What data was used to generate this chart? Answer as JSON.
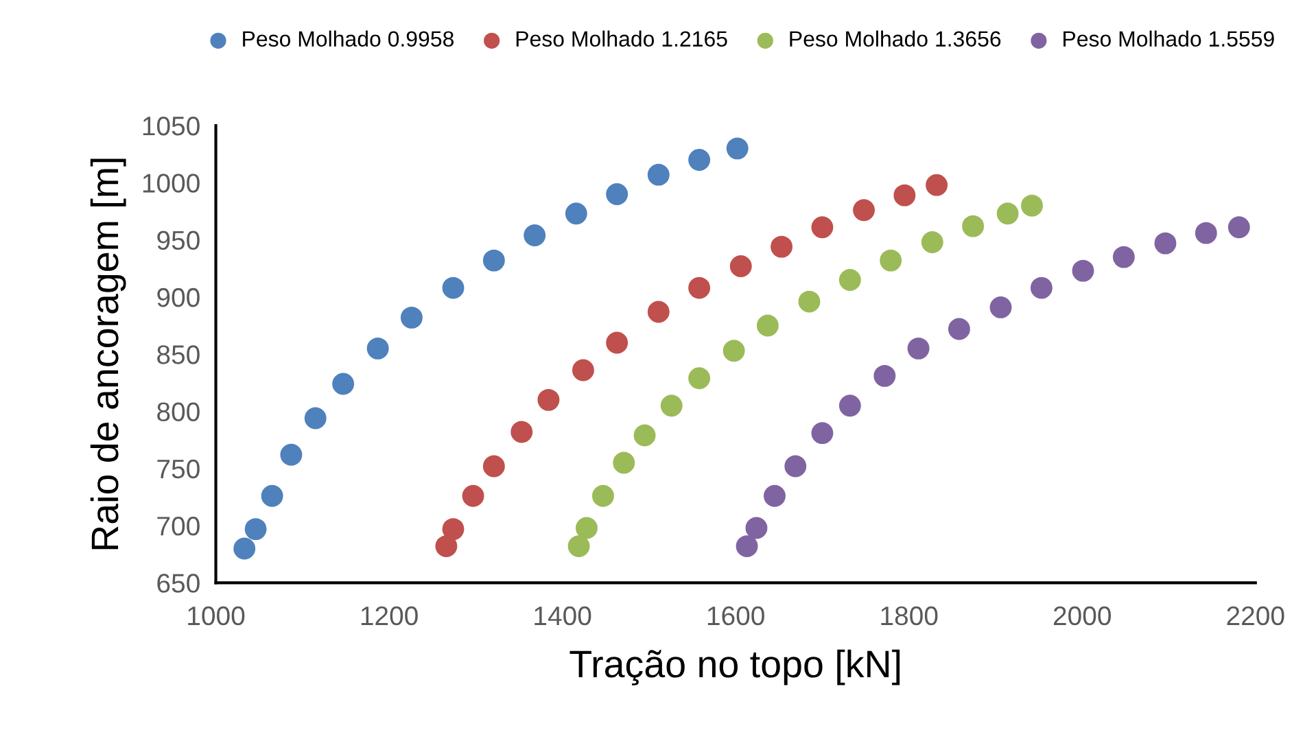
{
  "chart_data": {
    "type": "scatter",
    "xlabel": "Tração no topo [kN]",
    "ylabel": "Raio de ancoragem [m]",
    "xlim": [
      1000,
      2200
    ],
    "xticks": [
      1000,
      1200,
      1400,
      1600,
      1800,
      2000,
      2200
    ],
    "ylim": [
      650,
      1050
    ],
    "yticks": [
      650,
      700,
      750,
      800,
      850,
      900,
      950,
      1000,
      1050
    ],
    "grid": false,
    "legend": "top",
    "marker": "circle",
    "series": [
      {
        "name": "Peso Molhado 0.9958",
        "color": "#4f81bd",
        "x": [
          1033,
          1046,
          1065,
          1087,
          1115,
          1147,
          1187,
          1226,
          1274,
          1321,
          1368,
          1416,
          1463,
          1511,
          1558,
          1602
        ],
        "values": [
          680,
          697,
          726,
          762,
          794,
          824,
          855,
          882,
          908,
          932,
          954,
          973,
          990,
          1007,
          1020,
          1030
        ]
      },
      {
        "name": "Peso Molhado 1.2165",
        "color": "#c0504d",
        "x": [
          1266,
          1274,
          1297,
          1321,
          1353,
          1384,
          1424,
          1463,
          1511,
          1558,
          1606,
          1653,
          1700,
          1748,
          1795,
          1832
        ],
        "values": [
          682,
          697,
          726,
          752,
          782,
          810,
          836,
          860,
          887,
          908,
          927,
          944,
          961,
          976,
          989,
          998
        ]
      },
      {
        "name": "Peso Molhado 1.3656",
        "color": "#9bbb59",
        "x": [
          1419,
          1428,
          1447,
          1471,
          1495,
          1526,
          1558,
          1598,
          1637,
          1685,
          1732,
          1779,
          1827,
          1874,
          1914,
          1942
        ],
        "values": [
          682,
          698,
          726,
          755,
          779,
          805,
          829,
          853,
          875,
          896,
          915,
          932,
          948,
          962,
          973,
          980
        ]
      },
      {
        "name": "Peso Molhado 1.5559",
        "color": "#8064a2",
        "x": [
          1613,
          1624,
          1645,
          1669,
          1700,
          1732,
          1772,
          1811,
          1858,
          1906,
          1953,
          2001,
          2048,
          2096,
          2143,
          2181
        ],
        "values": [
          682,
          698,
          726,
          752,
          781,
          805,
          831,
          855,
          872,
          891,
          908,
          923,
          935,
          947,
          956,
          961
        ]
      }
    ]
  }
}
